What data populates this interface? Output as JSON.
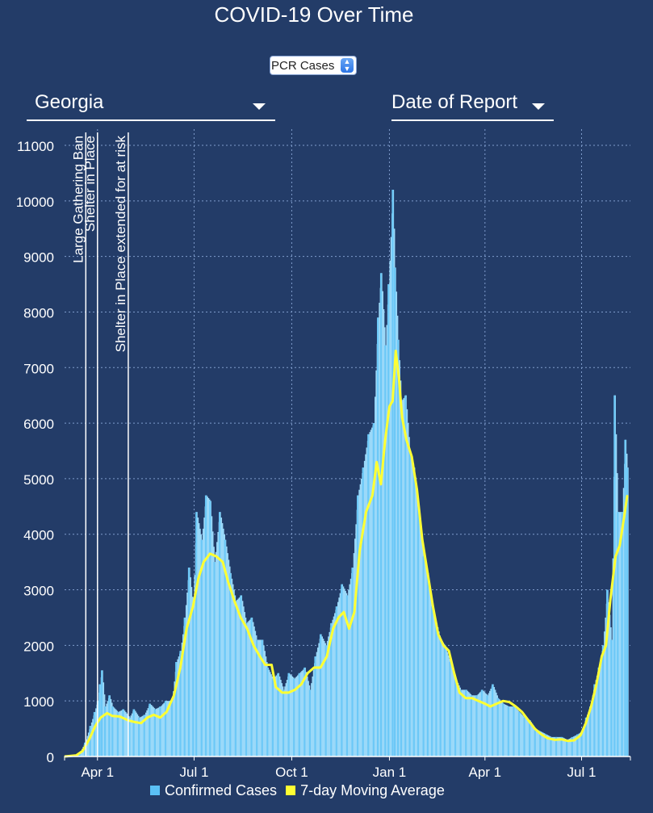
{
  "title": "COVID-19 Over Time",
  "metric_select": {
    "value": "PCR Cases"
  },
  "state_dropdown": {
    "value": "Georgia"
  },
  "date_dropdown": {
    "value": "Date of Report"
  },
  "icons": {
    "dropdown": "caret-down-icon",
    "spinner": "up-down-arrows-icon"
  },
  "colors": {
    "background": "#233c68",
    "bars": "#9bd9f9",
    "average": "#ffff33",
    "grid": "#7f9ccb",
    "text": "#ffffff"
  },
  "legend": [
    {
      "label": "Confirmed Cases",
      "color": "#5bc0f5"
    },
    {
      "label": "7-day Moving Average",
      "color": "#ffff33"
    }
  ],
  "chart_data": {
    "type": "area",
    "x_type": "date",
    "xlim": [
      "2020-03-01",
      "2021-08-16"
    ],
    "ylim": [
      0,
      11000
    ],
    "y_ticks": [
      0,
      1000,
      2000,
      3000,
      4000,
      5000,
      6000,
      7000,
      8000,
      9000,
      10000,
      11000
    ],
    "x_ticks": [
      {
        "date": "2020-04-01",
        "label": "Apr 1"
      },
      {
        "date": "2020-07-01",
        "label": "Jul 1"
      },
      {
        "date": "2020-10-01",
        "label": "Oct 1"
      },
      {
        "date": "2021-01-01",
        "label": "Jan 1"
      },
      {
        "date": "2021-04-01",
        "label": "Apr 1"
      },
      {
        "date": "2021-07-01",
        "label": "Jul 1"
      }
    ],
    "grid": true,
    "legend_position": "bottom",
    "annotations": [
      {
        "date": "2020-03-21",
        "label": "Large Gathering Ban"
      },
      {
        "date": "2020-04-01",
        "label": "Shelter in Place"
      },
      {
        "date": "2020-04-30",
        "label": "Shelter in Place extended for at risk"
      }
    ],
    "series": [
      {
        "name": "Confirmed Cases",
        "style": "bars",
        "points": [
          [
            "2020-03-01",
            0
          ],
          [
            "2020-03-10",
            20
          ],
          [
            "2020-03-15",
            60
          ],
          [
            "2020-03-20",
            250
          ],
          [
            "2020-03-25",
            550
          ],
          [
            "2020-03-29",
            800
          ],
          [
            "2020-04-01",
            1000
          ],
          [
            "2020-04-03",
            1300
          ],
          [
            "2020-04-05",
            1550
          ],
          [
            "2020-04-08",
            900
          ],
          [
            "2020-04-12",
            1100
          ],
          [
            "2020-04-15",
            900
          ],
          [
            "2020-04-20",
            800
          ],
          [
            "2020-04-25",
            850
          ],
          [
            "2020-05-01",
            700
          ],
          [
            "2020-05-05",
            850
          ],
          [
            "2020-05-10",
            700
          ],
          [
            "2020-05-15",
            750
          ],
          [
            "2020-05-20",
            950
          ],
          [
            "2020-05-25",
            850
          ],
          [
            "2020-05-30",
            900
          ],
          [
            "2020-06-04",
            1000
          ],
          [
            "2020-06-10",
            1000
          ],
          [
            "2020-06-14",
            1700
          ],
          [
            "2020-06-18",
            1900
          ],
          [
            "2020-06-22",
            2500
          ],
          [
            "2020-06-26",
            3400
          ],
          [
            "2020-06-30",
            2700
          ],
          [
            "2020-07-03",
            4400
          ],
          [
            "2020-07-08",
            3900
          ],
          [
            "2020-07-12",
            4700
          ],
          [
            "2020-07-16",
            4600
          ],
          [
            "2020-07-20",
            3500
          ],
          [
            "2020-07-25",
            4400
          ],
          [
            "2020-07-30",
            3900
          ],
          [
            "2020-08-04",
            3300
          ],
          [
            "2020-08-09",
            2800
          ],
          [
            "2020-08-14",
            2900
          ],
          [
            "2020-08-19",
            2400
          ],
          [
            "2020-08-24",
            2500
          ],
          [
            "2020-08-29",
            2100
          ],
          [
            "2020-09-03",
            2100
          ],
          [
            "2020-09-08",
            1600
          ],
          [
            "2020-09-13",
            1400
          ],
          [
            "2020-09-18",
            1500
          ],
          [
            "2020-09-23",
            1200
          ],
          [
            "2020-09-28",
            1500
          ],
          [
            "2020-10-03",
            1400
          ],
          [
            "2020-10-08",
            1500
          ],
          [
            "2020-10-13",
            1600
          ],
          [
            "2020-10-18",
            1200
          ],
          [
            "2020-10-23",
            1800
          ],
          [
            "2020-10-28",
            2200
          ],
          [
            "2020-11-02",
            2000
          ],
          [
            "2020-11-07",
            2400
          ],
          [
            "2020-11-12",
            2700
          ],
          [
            "2020-11-17",
            3100
          ],
          [
            "2020-11-22",
            2900
          ],
          [
            "2020-11-27",
            3400
          ],
          [
            "2020-12-02",
            4700
          ],
          [
            "2020-12-07",
            5200
          ],
          [
            "2020-12-12",
            5800
          ],
          [
            "2020-12-17",
            6000
          ],
          [
            "2020-12-21",
            7900
          ],
          [
            "2020-12-24",
            8700
          ],
          [
            "2020-12-28",
            7400
          ],
          [
            "2020-12-31",
            8500
          ],
          [
            "2021-01-04",
            10200
          ],
          [
            "2021-01-06",
            8800
          ],
          [
            "2021-01-09",
            7500
          ],
          [
            "2021-01-12",
            6400
          ],
          [
            "2021-01-16",
            6500
          ],
          [
            "2021-01-20",
            5500
          ],
          [
            "2021-01-24",
            5200
          ],
          [
            "2021-01-28",
            4500
          ],
          [
            "2021-02-02",
            3600
          ],
          [
            "2021-02-06",
            3300
          ],
          [
            "2021-02-10",
            2700
          ],
          [
            "2021-02-14",
            2400
          ],
          [
            "2021-02-18",
            2100
          ],
          [
            "2021-02-22",
            2000
          ],
          [
            "2021-02-27",
            1700
          ],
          [
            "2021-03-04",
            1400
          ],
          [
            "2021-03-09",
            1200
          ],
          [
            "2021-03-14",
            1200
          ],
          [
            "2021-03-19",
            1100
          ],
          [
            "2021-03-24",
            1100
          ],
          [
            "2021-03-29",
            1200
          ],
          [
            "2021-04-03",
            1100
          ],
          [
            "2021-04-08",
            1300
          ],
          [
            "2021-04-13",
            1050
          ],
          [
            "2021-04-18",
            950
          ],
          [
            "2021-04-23",
            900
          ],
          [
            "2021-04-28",
            900
          ],
          [
            "2021-05-03",
            800
          ],
          [
            "2021-05-08",
            700
          ],
          [
            "2021-05-13",
            650
          ],
          [
            "2021-05-18",
            500
          ],
          [
            "2021-05-23",
            450
          ],
          [
            "2021-05-28",
            400
          ],
          [
            "2021-06-02",
            350
          ],
          [
            "2021-06-07",
            350
          ],
          [
            "2021-06-12",
            350
          ],
          [
            "2021-06-17",
            300
          ],
          [
            "2021-06-22",
            350
          ],
          [
            "2021-06-27",
            400
          ],
          [
            "2021-07-01",
            450
          ],
          [
            "2021-07-05",
            700
          ],
          [
            "2021-07-09",
            900
          ],
          [
            "2021-07-13",
            1300
          ],
          [
            "2021-07-17",
            1600
          ],
          [
            "2021-07-21",
            2000
          ],
          [
            "2021-07-25",
            3000
          ],
          [
            "2021-07-29",
            2100
          ],
          [
            "2021-08-01",
            6500
          ],
          [
            "2021-08-04",
            4400
          ],
          [
            "2021-08-08",
            4400
          ],
          [
            "2021-08-11",
            5700
          ],
          [
            "2021-08-13",
            5200
          ]
        ]
      },
      {
        "name": "7-day Moving Average",
        "style": "line",
        "points": [
          [
            "2020-03-01",
            0
          ],
          [
            "2020-03-12",
            20
          ],
          [
            "2020-03-18",
            100
          ],
          [
            "2020-03-24",
            300
          ],
          [
            "2020-03-30",
            550
          ],
          [
            "2020-04-04",
            700
          ],
          [
            "2020-04-10",
            780
          ],
          [
            "2020-04-15",
            730
          ],
          [
            "2020-04-22",
            720
          ],
          [
            "2020-04-30",
            650
          ],
          [
            "2020-05-06",
            620
          ],
          [
            "2020-05-12",
            600
          ],
          [
            "2020-05-18",
            700
          ],
          [
            "2020-05-24",
            750
          ],
          [
            "2020-05-30",
            700
          ],
          [
            "2020-06-05",
            800
          ],
          [
            "2020-06-12",
            1100
          ],
          [
            "2020-06-18",
            1600
          ],
          [
            "2020-06-24",
            2300
          ],
          [
            "2020-06-30",
            2700
          ],
          [
            "2020-07-05",
            3200
          ],
          [
            "2020-07-10",
            3500
          ],
          [
            "2020-07-16",
            3650
          ],
          [
            "2020-07-22",
            3600
          ],
          [
            "2020-07-28",
            3500
          ],
          [
            "2020-08-02",
            3150
          ],
          [
            "2020-08-08",
            2800
          ],
          [
            "2020-08-14",
            2500
          ],
          [
            "2020-08-20",
            2300
          ],
          [
            "2020-08-26",
            2000
          ],
          [
            "2020-09-01",
            1800
          ],
          [
            "2020-09-06",
            1650
          ],
          [
            "2020-09-12",
            1650
          ],
          [
            "2020-09-16",
            1250
          ],
          [
            "2020-09-22",
            1150
          ],
          [
            "2020-09-28",
            1150
          ],
          [
            "2020-10-04",
            1200
          ],
          [
            "2020-10-10",
            1300
          ],
          [
            "2020-10-16",
            1500
          ],
          [
            "2020-10-22",
            1600
          ],
          [
            "2020-10-28",
            1600
          ],
          [
            "2020-11-03",
            1800
          ],
          [
            "2020-11-09",
            2300
          ],
          [
            "2020-11-14",
            2500
          ],
          [
            "2020-11-19",
            2600
          ],
          [
            "2020-11-24",
            2300
          ],
          [
            "2020-11-29",
            2600
          ],
          [
            "2020-12-04",
            3700
          ],
          [
            "2020-12-10",
            4400
          ],
          [
            "2020-12-16",
            4700
          ],
          [
            "2020-12-20",
            5300
          ],
          [
            "2020-12-24",
            4900
          ],
          [
            "2020-12-28",
            5700
          ],
          [
            "2021-01-01",
            6300
          ],
          [
            "2021-01-04",
            6400
          ],
          [
            "2021-01-07",
            7300
          ],
          [
            "2021-01-10",
            6800
          ],
          [
            "2021-01-13",
            6100
          ],
          [
            "2021-01-17",
            5700
          ],
          [
            "2021-01-22",
            5400
          ],
          [
            "2021-01-27",
            4800
          ],
          [
            "2021-02-01",
            3900
          ],
          [
            "2021-02-06",
            3300
          ],
          [
            "2021-02-11",
            2700
          ],
          [
            "2021-02-16",
            2200
          ],
          [
            "2021-02-21",
            2000
          ],
          [
            "2021-02-26",
            1900
          ],
          [
            "2021-03-03",
            1500
          ],
          [
            "2021-03-08",
            1150
          ],
          [
            "2021-03-14",
            1050
          ],
          [
            "2021-03-20",
            1050
          ],
          [
            "2021-03-26",
            1000
          ],
          [
            "2021-04-01",
            950
          ],
          [
            "2021-04-06",
            900
          ],
          [
            "2021-04-12",
            950
          ],
          [
            "2021-04-18",
            1000
          ],
          [
            "2021-04-24",
            980
          ],
          [
            "2021-04-30",
            900
          ],
          [
            "2021-05-06",
            800
          ],
          [
            "2021-05-12",
            650
          ],
          [
            "2021-05-18",
            500
          ],
          [
            "2021-05-24",
            400
          ],
          [
            "2021-05-30",
            330
          ],
          [
            "2021-06-06",
            300
          ],
          [
            "2021-06-12",
            310
          ],
          [
            "2021-06-18",
            280
          ],
          [
            "2021-06-24",
            290
          ],
          [
            "2021-06-30",
            380
          ],
          [
            "2021-07-05",
            600
          ],
          [
            "2021-07-10",
            900
          ],
          [
            "2021-07-15",
            1300
          ],
          [
            "2021-07-20",
            1800
          ],
          [
            "2021-07-24",
            2000
          ],
          [
            "2021-07-28",
            2800
          ],
          [
            "2021-08-02",
            3600
          ],
          [
            "2021-08-06",
            3800
          ],
          [
            "2021-08-10",
            4300
          ],
          [
            "2021-08-13",
            4700
          ]
        ]
      }
    ]
  }
}
